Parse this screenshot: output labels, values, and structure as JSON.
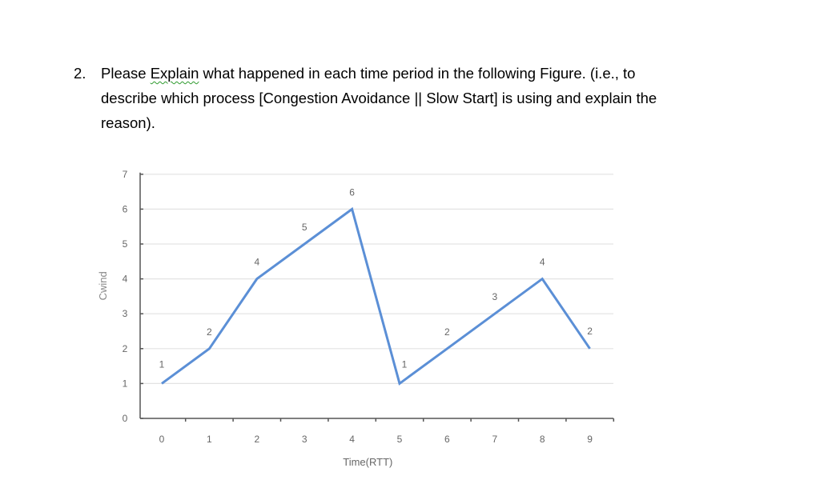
{
  "question": {
    "number": "2.",
    "line1_before": "Please",
    "line1_flagged_word": "Explain",
    "line1_after": "what happened in each time period in the following Figure. (i.e., to",
    "line2": "describe which process [Congestion Avoidance || Slow Start] is using and explain the",
    "line3": "reason)."
  },
  "chart_data": {
    "type": "line",
    "title": "",
    "xlabel": "Time(RTT)",
    "ylabel": "Cwind",
    "x": [
      0,
      1,
      2,
      3,
      4,
      5,
      6,
      7,
      8,
      9
    ],
    "xlim": [
      0,
      9
    ],
    "ylim": [
      0,
      7
    ],
    "x_ticks": [
      "0",
      "1",
      "2",
      "3",
      "4",
      "5",
      "6",
      "7",
      "8",
      "9"
    ],
    "y_ticks": [
      "0",
      "1",
      "2",
      "3",
      "4",
      "5",
      "6",
      "7"
    ],
    "grid": true,
    "line_color": "#5b8fd6",
    "series": [
      {
        "values": [
          1,
          2,
          4,
          5,
          6,
          1,
          2,
          3,
          4,
          2
        ],
        "data_labels": [
          "1",
          "2",
          "4",
          "5",
          "6",
          "1",
          "2",
          "3",
          "4",
          "2"
        ]
      }
    ]
  }
}
